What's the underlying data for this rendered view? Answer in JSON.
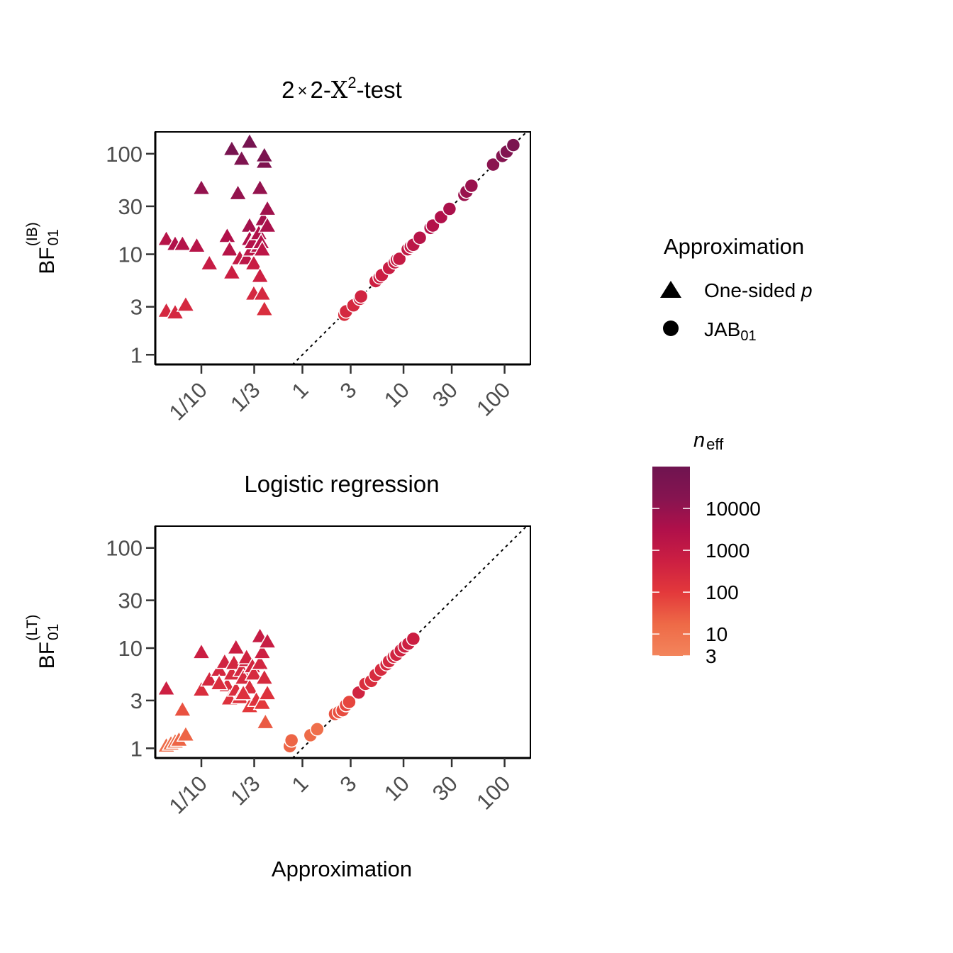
{
  "figure": {
    "x_axis_label": "Approximation"
  },
  "legend_shape": {
    "title": "Approximation",
    "items": [
      {
        "shape": "triangle",
        "label": "One-sided ",
        "label_italic": "p"
      },
      {
        "shape": "circle",
        "label": "JAB",
        "label_sub": "01"
      }
    ]
  },
  "legend_color": {
    "title_main": "n",
    "title_sub": "eff",
    "scale": "log",
    "range": [
      3,
      100000
    ],
    "breaks": [
      {
        "value": 10000,
        "label": "10000"
      },
      {
        "value": 1000,
        "label": "1000"
      },
      {
        "value": 100,
        "label": "100"
      },
      {
        "value": 10,
        "label": "10"
      },
      {
        "value": 3,
        "label": "3"
      }
    ],
    "colors": [
      "#f3855c",
      "#ee6a47",
      "#e3393b",
      "#cc1f42",
      "#b0104a",
      "#861450",
      "#6f1450"
    ]
  },
  "chart_data": [
    {
      "type": "scatter",
      "title": "2 × 2-X²-test",
      "title_parts": {
        "pre": "2",
        "times": "×",
        "mid": "2-",
        "chi": "X",
        "sup": "2",
        "post": "-test"
      },
      "ylabel": "BF",
      "ylabel_sub": "01",
      "ylabel_sup": "(IB)",
      "xlabel": "Approximation",
      "x_scale": "log",
      "y_scale": "log",
      "xlim": [
        0.035,
        180
      ],
      "ylim": [
        0.8,
        165
      ],
      "x_ticks": [
        {
          "v": 0.1,
          "l": "1/10"
        },
        {
          "v": 0.3333,
          "l": "1/3"
        },
        {
          "v": 1,
          "l": "1"
        },
        {
          "v": 3,
          "l": "3"
        },
        {
          "v": 10,
          "l": "10"
        },
        {
          "v": 30,
          "l": "30"
        },
        {
          "v": 100,
          "l": "100"
        }
      ],
      "y_ticks": [
        {
          "v": 1,
          "l": "1"
        },
        {
          "v": 3,
          "l": "3"
        },
        {
          "v": 10,
          "l": "10"
        },
        {
          "v": 30,
          "l": "30"
        },
        {
          "v": 100,
          "l": "100"
        }
      ],
      "reference_line": "y = x",
      "series": [
        {
          "name": "One-sided p",
          "shape": "triangle",
          "points": [
            [
              0.045,
              14,
              2000
            ],
            [
              0.055,
              12.5,
              3000
            ],
            [
              0.065,
              12.5,
              2500
            ],
            [
              0.09,
              12,
              2000
            ],
            [
              0.1,
              45,
              10000
            ],
            [
              0.12,
              8,
              800
            ],
            [
              0.18,
              15,
              3000
            ],
            [
              0.19,
              11,
              2000
            ],
            [
              0.2,
              6.5,
              600
            ],
            [
              0.2,
              110,
              50000
            ],
            [
              0.23,
              40,
              10000
            ],
            [
              0.24,
              9,
              1000
            ],
            [
              0.25,
              88,
              30000
            ],
            [
              0.28,
              9,
              1500
            ],
            [
              0.3,
              130,
              60000
            ],
            [
              0.3,
              19,
              5000
            ],
            [
              0.3,
              14,
              3000
            ],
            [
              0.31,
              11,
              1500
            ],
            [
              0.32,
              13,
              2500
            ],
            [
              0.33,
              8,
              700
            ],
            [
              0.33,
              4,
              300
            ],
            [
              0.37,
              12,
              2000
            ],
            [
              0.37,
              16,
              3000
            ],
            [
              0.38,
              45,
              10000
            ],
            [
              0.38,
              6,
              500
            ],
            [
              0.39,
              13,
              2500
            ],
            [
              0.4,
              11,
              1500
            ],
            [
              0.4,
              4,
              300
            ],
            [
              0.41,
              22,
              5000
            ],
            [
              0.42,
              82,
              30000
            ],
            [
              0.42,
              95,
              40000
            ],
            [
              0.42,
              2.8,
              200
            ],
            [
              0.45,
              19,
              4000
            ],
            [
              0.45,
              28,
              6000
            ],
            [
              0.045,
              2.7,
              300
            ],
            [
              0.055,
              2.6,
              300
            ],
            [
              0.07,
              3.1,
              300
            ]
          ]
        },
        {
          "name": "JAB01",
          "shape": "circle",
          "points": [
            [
              2.6,
              2.5,
              200
            ],
            [
              2.7,
              2.7,
              300
            ],
            [
              3.2,
              3.1,
              300
            ],
            [
              3.7,
              3.6,
              400
            ],
            [
              3.8,
              3.8,
              400
            ],
            [
              5.3,
              5.4,
              500
            ],
            [
              5.8,
              5.9,
              600
            ],
            [
              6.1,
              6.2,
              600
            ],
            [
              7.2,
              7.3,
              700
            ],
            [
              8.2,
              8.3,
              800
            ],
            [
              8.6,
              8.8,
              800
            ],
            [
              9.1,
              9.0,
              900
            ],
            [
              11,
              11.2,
              1000
            ],
            [
              11.8,
              11.9,
              1000
            ],
            [
              12.5,
              12.4,
              1500
            ],
            [
              14.5,
              14.6,
              2000
            ],
            [
              18.5,
              18.3,
              2500
            ],
            [
              19.5,
              19.3,
              2500
            ],
            [
              23.5,
              23.4,
              3000
            ],
            [
              28.5,
              28.3,
              4000
            ],
            [
              40,
              39,
              7000
            ],
            [
              42,
              42,
              8000
            ],
            [
              47,
              48,
              8000
            ],
            [
              77,
              78,
              15000
            ],
            [
              95,
              95,
              20000
            ],
            [
              105,
              105,
              25000
            ],
            [
              122,
              122,
              40000
            ]
          ]
        }
      ]
    },
    {
      "type": "scatter",
      "title": "Logistic regression",
      "ylabel": "BF",
      "ylabel_sub": "01",
      "ylabel_sup": "(LT)",
      "xlabel": "Approximation",
      "x_scale": "log",
      "y_scale": "log",
      "xlim": [
        0.035,
        180
      ],
      "ylim": [
        0.8,
        165
      ],
      "x_ticks": [
        {
          "v": 0.1,
          "l": "1/10"
        },
        {
          "v": 0.3333,
          "l": "1/3"
        },
        {
          "v": 1,
          "l": "1"
        },
        {
          "v": 3,
          "l": "3"
        },
        {
          "v": 10,
          "l": "10"
        },
        {
          "v": 30,
          "l": "30"
        },
        {
          "v": 100,
          "l": "100"
        }
      ],
      "y_ticks": [
        {
          "v": 1,
          "l": "1"
        },
        {
          "v": 3,
          "l": "3"
        },
        {
          "v": 10,
          "l": "10"
        },
        {
          "v": 30,
          "l": "30"
        },
        {
          "v": 100,
          "l": "100"
        }
      ],
      "reference_line": "y = x",
      "series": [
        {
          "name": "One-sided p",
          "shape": "triangle",
          "points": [
            [
              0.045,
              3.9,
              500
            ],
            [
              0.045,
              1.05,
              15
            ],
            [
              0.05,
              1.1,
              15
            ],
            [
              0.055,
              1.15,
              15
            ],
            [
              0.06,
              1.2,
              20
            ],
            [
              0.065,
              2.4,
              40
            ],
            [
              0.07,
              1.35,
              20
            ],
            [
              0.1,
              9,
              600
            ],
            [
              0.1,
              3.8,
              200
            ],
            [
              0.12,
              4.8,
              300
            ],
            [
              0.15,
              6,
              300
            ],
            [
              0.17,
              7.2,
              400
            ],
            [
              0.18,
              4.2,
              200
            ],
            [
              0.19,
              3.1,
              150
            ],
            [
              0.2,
              5.5,
              250
            ],
            [
              0.21,
              7,
              350
            ],
            [
              0.22,
              10,
              600
            ],
            [
              0.22,
              3.8,
              200
            ],
            [
              0.24,
              3.2,
              150
            ],
            [
              0.25,
              6,
              300
            ],
            [
              0.26,
              5,
              250
            ],
            [
              0.28,
              7.5,
              400
            ],
            [
              0.28,
              8,
              400
            ],
            [
              0.3,
              4,
              200
            ],
            [
              0.3,
              2.6,
              100
            ],
            [
              0.32,
              6.5,
              350
            ],
            [
              0.33,
              5.5,
              250
            ],
            [
              0.35,
              3,
              150
            ],
            [
              0.38,
              13,
              800
            ],
            [
              0.38,
              7,
              350
            ],
            [
              0.4,
              9,
              500
            ],
            [
              0.4,
              2.8,
              100
            ],
            [
              0.42,
              5,
              250
            ],
            [
              0.43,
              1.8,
              30
            ],
            [
              0.45,
              11.5,
              700
            ],
            [
              0.45,
              3.5,
              150
            ],
            [
              0.15,
              4.4,
              200
            ],
            [
              0.26,
              3.5,
              150
            ]
          ]
        },
        {
          "name": "JAB01",
          "shape": "circle",
          "points": [
            [
              0.75,
              1.05,
              20
            ],
            [
              0.78,
              1.2,
              20
            ],
            [
              1.2,
              1.35,
              15
            ],
            [
              1.4,
              1.55,
              12
            ],
            [
              2.1,
              2.2,
              40
            ],
            [
              2.3,
              2.3,
              40
            ],
            [
              2.5,
              2.4,
              50
            ],
            [
              2.7,
              2.7,
              60
            ],
            [
              2.9,
              2.9,
              60
            ],
            [
              3.6,
              3.6,
              400
            ],
            [
              4.2,
              4.4,
              200
            ],
            [
              4.8,
              4.7,
              200
            ],
            [
              5.3,
              5.4,
              250
            ],
            [
              6.0,
              6.1,
              250
            ],
            [
              6.8,
              6.9,
              300
            ],
            [
              7.2,
              7.4,
              300
            ],
            [
              8.0,
              8.2,
              350
            ],
            [
              8.5,
              8.6,
              400
            ],
            [
              9.4,
              9.5,
              450
            ],
            [
              10.3,
              10.4,
              500
            ],
            [
              11.2,
              11.1,
              500
            ],
            [
              12.5,
              12.4,
              600
            ]
          ]
        }
      ]
    }
  ]
}
